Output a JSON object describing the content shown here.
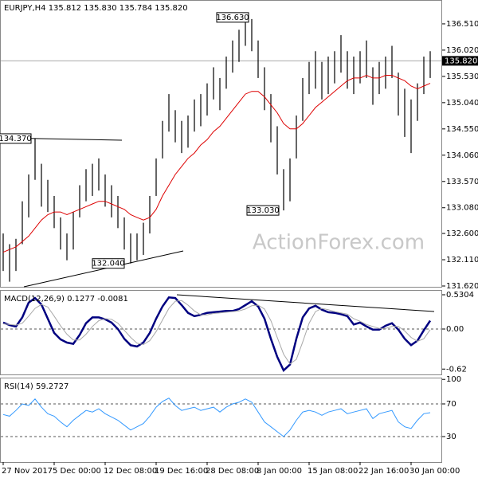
{
  "watermark": "ActionForex.com",
  "chart_data": [
    {
      "type": "ohlc",
      "title": "EURJPY,H4  135.812 135.830 135.784 135.820",
      "color": "#000000",
      "high": [
        132.6,
        132.4,
        132.5,
        133.2,
        133.7,
        134.37,
        133.9,
        133.6,
        133.3,
        132.9,
        132.6,
        133.0,
        133.5,
        133.8,
        133.9,
        134.0,
        133.7,
        133.5,
        133.3,
        132.9,
        132.6,
        132.6,
        132.8,
        133.3,
        134.0,
        134.7,
        135.2,
        134.9,
        134.7,
        134.8,
        135.1,
        135.2,
        135.4,
        135.7,
        135.5,
        135.9,
        136.2,
        136.4,
        136.63,
        136.6,
        136.2,
        135.7,
        135.2,
        134.6,
        133.8,
        134.0,
        134.8,
        135.5,
        135.8,
        136.0,
        135.8,
        135.9,
        136.0,
        136.3,
        136.0,
        135.9,
        136.0,
        136.2,
        135.7,
        135.8,
        135.9,
        136.1,
        135.6,
        135.3,
        135.1,
        135.4,
        135.9,
        136.0
      ],
      "low": [
        131.9,
        131.7,
        131.9,
        132.4,
        132.9,
        133.6,
        133.1,
        133.0,
        132.7,
        132.3,
        132.1,
        132.3,
        132.9,
        133.2,
        133.3,
        133.4,
        133.1,
        132.9,
        132.7,
        132.3,
        132.04,
        132.1,
        132.2,
        132.6,
        133.3,
        134.0,
        134.5,
        134.3,
        134.1,
        134.2,
        134.5,
        134.6,
        134.8,
        135.1,
        134.9,
        135.3,
        135.6,
        135.8,
        136.1,
        136.0,
        135.5,
        134.9,
        134.3,
        133.7,
        133.03,
        133.2,
        134.0,
        134.7,
        135.2,
        135.3,
        135.1,
        135.2,
        135.4,
        135.6,
        135.3,
        135.2,
        135.4,
        135.5,
        135.0,
        135.2,
        135.3,
        135.5,
        134.8,
        134.4,
        134.1,
        134.7,
        135.2,
        135.5
      ],
      "lines": [
        {
          "color": "#dd0000",
          "values": [
            132.25,
            132.3,
            132.35,
            132.45,
            132.55,
            132.7,
            132.85,
            132.95,
            133.0,
            133.0,
            132.95,
            133.0,
            133.05,
            133.1,
            133.15,
            133.2,
            133.2,
            133.15,
            133.1,
            133.05,
            132.95,
            132.9,
            132.85,
            132.9,
            133.05,
            133.3,
            133.5,
            133.7,
            133.85,
            134.0,
            134.1,
            134.25,
            134.35,
            134.5,
            134.6,
            134.75,
            134.9,
            135.05,
            135.2,
            135.25,
            135.25,
            135.15,
            135.0,
            134.85,
            134.65,
            134.55,
            134.55,
            134.65,
            134.8,
            134.95,
            135.05,
            135.15,
            135.25,
            135.35,
            135.45,
            135.5,
            135.5,
            135.55,
            135.5,
            135.5,
            135.55,
            135.55,
            135.5,
            135.45,
            135.35,
            135.3,
            135.35,
            135.4
          ]
        }
      ],
      "ylim": [
        131.605,
        136.955
      ],
      "yticks": [
        {
          "value": 136.51,
          "label": "136.510"
        },
        {
          "value": 136.02,
          "label": "136.020"
        },
        {
          "value": 135.53,
          "label": "135.530"
        },
        {
          "value": 135.04,
          "label": "135.040"
        },
        {
          "value": 134.55,
          "label": "134.550"
        },
        {
          "value": 134.06,
          "label": "134.060"
        },
        {
          "value": 133.57,
          "label": "133.570"
        },
        {
          "value": 133.08,
          "label": "133.080"
        },
        {
          "value": 132.6,
          "label": "132.600"
        },
        {
          "value": 132.11,
          "label": "132.110"
        },
        {
          "value": 131.62,
          "label": "131.620"
        }
      ],
      "last_price": {
        "value": 135.82,
        "label": "135.820"
      },
      "annotations": [
        {
          "value": 136.63,
          "label": "136.630"
        },
        {
          "value": 134.37,
          "label": "134.370"
        },
        {
          "value": 133.03,
          "label": "133.030"
        },
        {
          "value": 132.04,
          "label": "132.040"
        }
      ]
    },
    {
      "type": "line",
      "title": "MACD(12,26,9) 0.1277 -0.0081",
      "series": [
        {
          "color": "#000080",
          "values": [
            0.1,
            0.06,
            0.04,
            0.18,
            0.41,
            0.48,
            0.38,
            0.16,
            -0.06,
            -0.16,
            -0.21,
            -0.23,
            -0.09,
            0.09,
            0.18,
            0.18,
            0.15,
            0.1,
            0.0,
            -0.15,
            -0.25,
            -0.27,
            -0.21,
            -0.06,
            0.16,
            0.35,
            0.49,
            0.48,
            0.37,
            0.25,
            0.2,
            0.22,
            0.25,
            0.26,
            0.27,
            0.28,
            0.28,
            0.31,
            0.37,
            0.43,
            0.35,
            0.16,
            -0.15,
            -0.43,
            -0.64,
            -0.55,
            -0.15,
            0.18,
            0.32,
            0.36,
            0.3,
            0.26,
            0.25,
            0.23,
            0.2,
            0.07,
            0.1,
            0.04,
            -0.01,
            -0.01,
            0.05,
            0.09,
            -0.01,
            -0.15,
            -0.25,
            -0.18,
            -0.02,
            0.13
          ]
        },
        {
          "color": "#a9a9a9",
          "values": [
            0.08,
            0.07,
            0.06,
            0.09,
            0.2,
            0.32,
            0.38,
            0.34,
            0.2,
            0.05,
            -0.08,
            -0.17,
            -0.17,
            -0.08,
            0.04,
            0.13,
            0.16,
            0.15,
            0.09,
            -0.02,
            -0.13,
            -0.22,
            -0.24,
            -0.18,
            -0.04,
            0.14,
            0.32,
            0.43,
            0.44,
            0.37,
            0.28,
            0.22,
            0.22,
            0.24,
            0.25,
            0.26,
            0.27,
            0.28,
            0.31,
            0.36,
            0.37,
            0.31,
            0.13,
            -0.13,
            -0.39,
            -0.54,
            -0.47,
            -0.2,
            0.09,
            0.27,
            0.32,
            0.3,
            0.27,
            0.25,
            0.23,
            0.16,
            0.12,
            0.07,
            0.04,
            0.01,
            0.01,
            0.04,
            0.04,
            -0.03,
            -0.13,
            -0.19,
            -0.15,
            -0.01
          ]
        }
      ],
      "ylim": [
        -0.703,
        0.592
      ],
      "yticks": [
        0.5304,
        {
          "value": 0,
          "label": "0.00"
        },
        -0.62
      ],
      "dashed_ticks": [
        1
      ]
    },
    {
      "type": "line",
      "title": "RSI(14) 59.2727",
      "series": [
        {
          "color": "#3399ff",
          "values": [
            57,
            55,
            62,
            70,
            68,
            76,
            66,
            58,
            55,
            48,
            42,
            50,
            56,
            62,
            60,
            64,
            58,
            54,
            50,
            44,
            38,
            42,
            46,
            55,
            66,
            73,
            77,
            68,
            62,
            64,
            66,
            62,
            64,
            66,
            60,
            66,
            70,
            72,
            76,
            72,
            60,
            48,
            42,
            36,
            30,
            38,
            50,
            60,
            62,
            60,
            56,
            60,
            62,
            64,
            58,
            60,
            62,
            64,
            52,
            58,
            60,
            62,
            48,
            42,
            40,
            50,
            58,
            59.27
          ]
        }
      ],
      "ylim": [
        -1.2,
        101.2
      ],
      "yticks": [
        100,
        70,
        30
      ],
      "dashed_ticks": [
        1,
        2
      ],
      "categories": [
        "27 Nov 2017",
        null,
        null,
        null,
        null,
        null,
        null,
        null,
        "5 Dec 00:00",
        null,
        null,
        null,
        null,
        null,
        null,
        null,
        "12 Dec 08:00",
        null,
        null,
        null,
        null,
        null,
        null,
        null,
        "19 Dec 16:00",
        null,
        null,
        null,
        null,
        null,
        null,
        null,
        "28 Dec 08:00",
        null,
        null,
        null,
        null,
        null,
        null,
        null,
        "8 Jan 00:00",
        null,
        null,
        null,
        null,
        null,
        null,
        null,
        "15 Jan 08:00",
        null,
        null,
        null,
        null,
        null,
        null,
        null,
        "22 Jan 16:00",
        null,
        null,
        null,
        null,
        null,
        null,
        null,
        "30 Jan 00:00",
        null,
        null,
        null
      ]
    }
  ]
}
